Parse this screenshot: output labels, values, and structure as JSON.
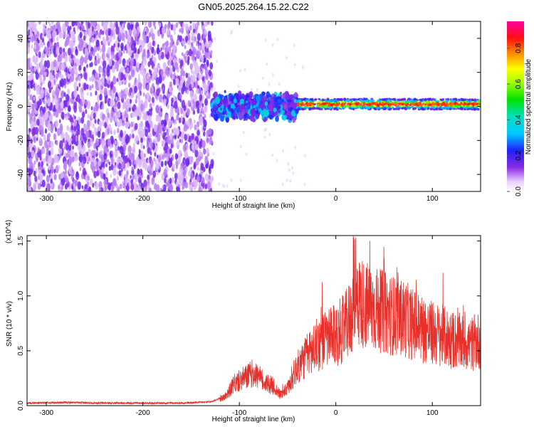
{
  "title": "GN05.2025.264.15.22.C22",
  "chart_data": [
    {
      "type": "heatmap",
      "title": "GN05.2025.264.15.22.C22",
      "xlabel": "Height of straight line (km)",
      "ylabel": "Frequency (Hz)",
      "xlim": [
        -320,
        150
      ],
      "ylim": [
        -50,
        50
      ],
      "x_ticks": [
        -300,
        -200,
        -100,
        0,
        100
      ],
      "x_tick_labels": [
        "-300",
        "-200",
        "-100",
        "0",
        "100"
      ],
      "y_ticks": [
        -40,
        -20,
        0,
        20,
        40
      ],
      "y_tick_labels": [
        "-40",
        "-20",
        "0",
        "20",
        "40"
      ],
      "colorbar": {
        "label": "Normalized spectral amplitude",
        "range": [
          0,
          0.95
        ],
        "ticks": [
          0.0,
          0.2,
          0.4,
          0.6,
          0.8
        ],
        "tick_labels": [
          "0.0",
          "0.2",
          "0.4",
          "0.6",
          "0.8"
        ]
      },
      "regions": [
        {
          "x_range": [
            -320,
            -128
          ],
          "f_range": [
            -50,
            50
          ],
          "amplitude": 0.15
        },
        {
          "x_range": [
            -128,
            -40
          ],
          "f_range": [
            -8,
            8
          ],
          "amplitude": 0.35
        },
        {
          "x_range": [
            -40,
            150
          ],
          "f_range": [
            -3,
            5
          ],
          "amplitude": 0.75
        }
      ],
      "grid": false
    },
    {
      "type": "line",
      "xlabel": "Height of straight line (km)",
      "ylabel": "SNR (10 * v/v)",
      "y_multiplier": "(x10^4)",
      "xlim": [
        -320,
        150
      ],
      "ylim": [
        0,
        1.55
      ],
      "x_ticks": [
        -300,
        -200,
        -100,
        0,
        100
      ],
      "x_tick_labels": [
        "-300",
        "-200",
        "-100",
        "0",
        "100"
      ],
      "y_ticks": [
        0.0,
        0.5,
        1.0,
        1.5
      ],
      "y_tick_labels": [
        "0.0",
        "0.5",
        "1.0",
        "1.5"
      ],
      "series_color": "#e8302a",
      "series": [
        {
          "x": [
            -320,
            -280,
            -240,
            -200,
            -160,
            -130,
            -115,
            -105,
            -95,
            -85,
            -75,
            -65,
            -58,
            -50,
            -42,
            -35,
            -28,
            -20,
            -12,
            -5,
            0,
            5,
            10,
            15,
            20,
            25,
            30,
            40,
            50,
            60,
            70,
            80,
            90,
            100,
            110,
            120,
            130,
            140,
            150
          ],
          "y": [
            0.02,
            0.025,
            0.02,
            0.02,
            0.02,
            0.03,
            0.08,
            0.2,
            0.25,
            0.3,
            0.22,
            0.18,
            0.1,
            0.15,
            0.32,
            0.4,
            0.48,
            0.55,
            0.6,
            0.62,
            0.64,
            0.68,
            0.72,
            0.8,
            0.9,
            0.95,
            0.92,
            0.88,
            0.85,
            0.82,
            0.8,
            0.74,
            0.7,
            0.66,
            0.64,
            0.6,
            0.58,
            0.56,
            0.6
          ]
        }
      ],
      "grid": false
    }
  ]
}
